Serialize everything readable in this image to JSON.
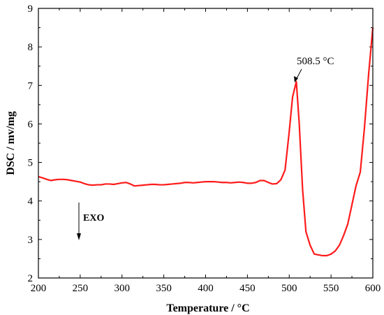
{
  "chart_data": {
    "type": "line",
    "xlabel": "Temperature / °C",
    "ylabel": "DSC / mv/mg",
    "xlim": [
      200,
      600
    ],
    "ylim": [
      2,
      9
    ],
    "x_ticks": [
      200,
      250,
      300,
      350,
      400,
      450,
      500,
      550,
      600
    ],
    "y_ticks": [
      2,
      3,
      4,
      5,
      6,
      7,
      8,
      9
    ],
    "grid": false,
    "line_color": "#ff1a1a",
    "series": [
      {
        "x": [
          200,
          205,
          210,
          215,
          220,
          225,
          230,
          235,
          240,
          245,
          250,
          255,
          260,
          265,
          270,
          275,
          280,
          285,
          290,
          295,
          300,
          305,
          310,
          315,
          320,
          325,
          330,
          335,
          340,
          345,
          350,
          355,
          360,
          365,
          370,
          375,
          380,
          385,
          390,
          395,
          400,
          405,
          410,
          415,
          420,
          425,
          430,
          435,
          440,
          445,
          450,
          455,
          460,
          465,
          470,
          475,
          480,
          485,
          490,
          495,
          500,
          504,
          508.5,
          512,
          516,
          520,
          525,
          530,
          535,
          540,
          545,
          550,
          555,
          560,
          565,
          570,
          575,
          580,
          585,
          590,
          595,
          600
        ],
        "y": [
          4.63,
          4.6,
          4.56,
          4.53,
          4.55,
          4.56,
          4.56,
          4.55,
          4.53,
          4.51,
          4.49,
          4.45,
          4.42,
          4.41,
          4.42,
          4.42,
          4.44,
          4.44,
          4.43,
          4.45,
          4.47,
          4.48,
          4.44,
          4.39,
          4.4,
          4.41,
          4.42,
          4.43,
          4.43,
          4.42,
          4.42,
          4.43,
          4.44,
          4.45,
          4.46,
          4.48,
          4.48,
          4.47,
          4.48,
          4.49,
          4.5,
          4.5,
          4.5,
          4.49,
          4.48,
          4.48,
          4.47,
          4.48,
          4.49,
          4.48,
          4.46,
          4.46,
          4.48,
          4.53,
          4.53,
          4.48,
          4.44,
          4.45,
          4.55,
          4.8,
          5.8,
          6.7,
          7.1,
          6.0,
          4.3,
          3.2,
          2.85,
          2.62,
          2.6,
          2.58,
          2.58,
          2.62,
          2.7,
          2.85,
          3.1,
          3.4,
          3.9,
          4.4,
          4.75,
          5.9,
          7.3,
          8.5
        ]
      }
    ],
    "annotations": [
      {
        "text": "508.5 °C",
        "x": 508.5,
        "y": 7.1
      },
      {
        "text": "EXO"
      }
    ]
  }
}
